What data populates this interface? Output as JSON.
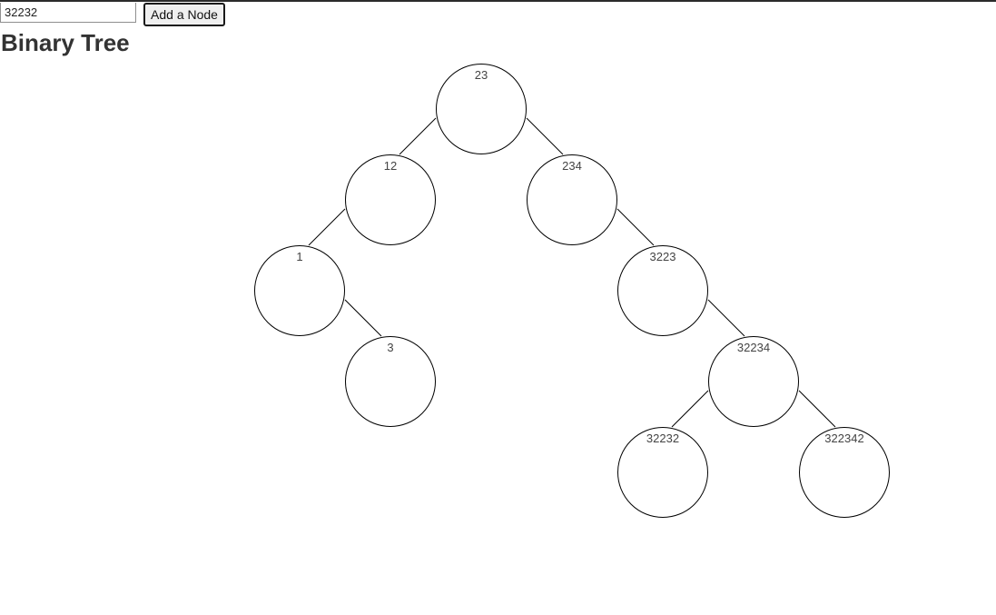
{
  "controls": {
    "input_value": "32232",
    "add_button_label": "Add a Node"
  },
  "heading": "Binary Tree",
  "tree": {
    "nodes": [
      {
        "id": "n23",
        "label": "23",
        "depth": 0,
        "order": 3
      },
      {
        "id": "n12",
        "label": "12",
        "depth": 1,
        "order": 2
      },
      {
        "id": "n234",
        "label": "234",
        "depth": 1,
        "order": 4
      },
      {
        "id": "n1",
        "label": "1",
        "depth": 2,
        "order": 1
      },
      {
        "id": "n3223",
        "label": "3223",
        "depth": 2,
        "order": 5
      },
      {
        "id": "n3",
        "label": "3",
        "depth": 3,
        "order": 2
      },
      {
        "id": "n32234",
        "label": "32234",
        "depth": 3,
        "order": 6
      },
      {
        "id": "n32232",
        "label": "32232",
        "depth": 4,
        "order": 5
      },
      {
        "id": "n322342",
        "label": "322342",
        "depth": 4,
        "order": 7
      }
    ],
    "edges": [
      {
        "from": "n23",
        "to": "n12",
        "side": "left"
      },
      {
        "from": "n23",
        "to": "n234",
        "side": "right"
      },
      {
        "from": "n12",
        "to": "n1",
        "side": "left"
      },
      {
        "from": "n234",
        "to": "n3223",
        "side": "right"
      },
      {
        "from": "n1",
        "to": "n3",
        "side": "right"
      },
      {
        "from": "n3223",
        "to": "n32234",
        "side": "right"
      },
      {
        "from": "n32234",
        "to": "n32232",
        "side": "left"
      },
      {
        "from": "n32234",
        "to": "n322342",
        "side": "right"
      }
    ]
  }
}
